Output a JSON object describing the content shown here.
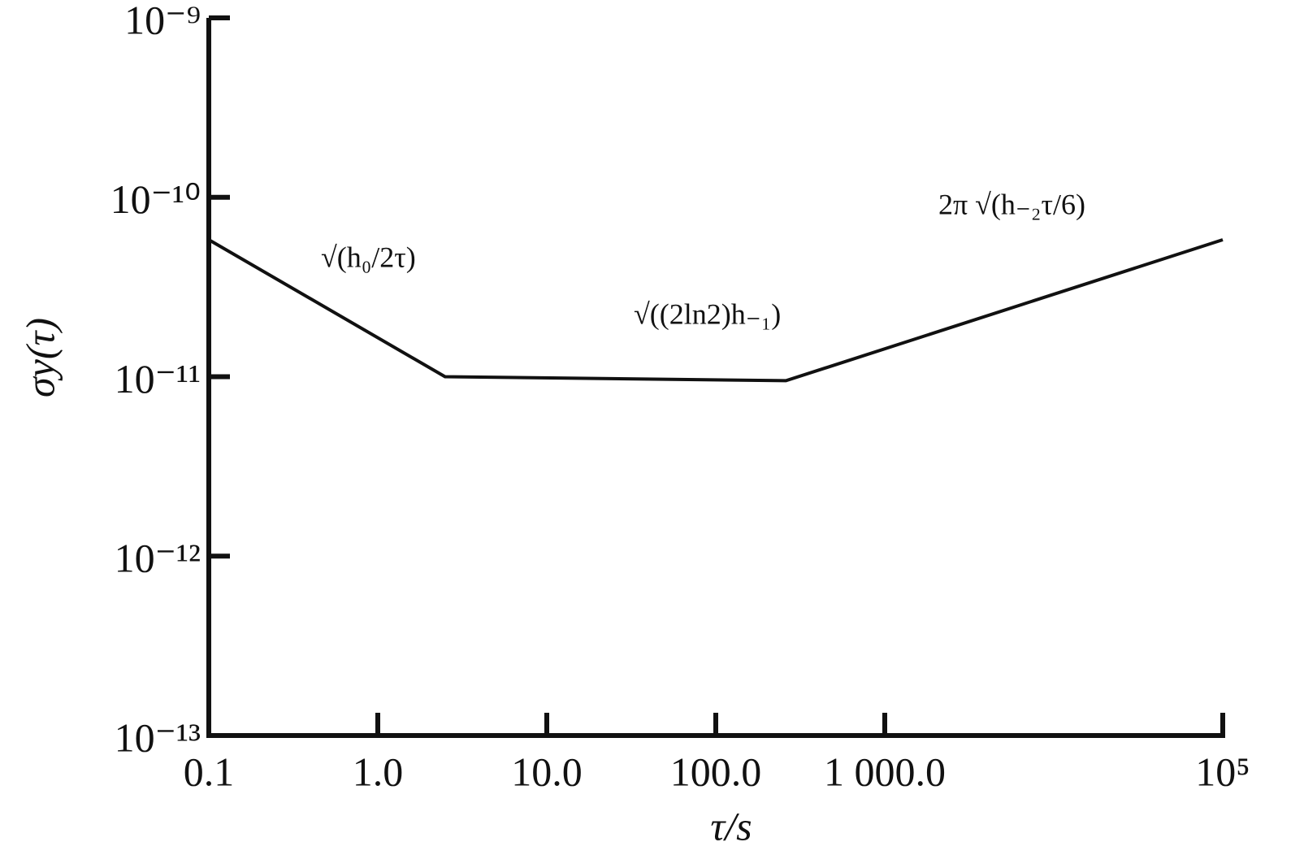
{
  "chart_data": {
    "type": "line",
    "x_label": "τ/s",
    "y_label": "σy(τ)",
    "x_log": true,
    "y_log": true,
    "xlim": [
      0.1,
      100000
    ],
    "xticks": [
      {
        "value": 0.1,
        "label": "0.1"
      },
      {
        "value": 1,
        "label": "1.0"
      },
      {
        "value": 10,
        "label": "10.0"
      },
      {
        "value": 100,
        "label": "100.0"
      },
      {
        "value": 1000,
        "label": "1 000.0"
      },
      {
        "value": 100000,
        "label": "10⁵"
      }
    ],
    "ylim": [
      1e-13,
      1e-09
    ],
    "yticks": [
      {
        "value": 1e-13,
        "label": "10⁻¹³"
      },
      {
        "value": 1e-12,
        "label": "10⁻¹²"
      },
      {
        "value": 1e-11,
        "label": "10⁻¹¹"
      },
      {
        "value": 1e-10,
        "label": "10⁻¹⁰"
      },
      {
        "value": 1e-09,
        "label": "10⁻⁹"
      }
    ],
    "color": "#111111",
    "x": [
      0.1,
      2.5,
      260,
      100000
    ],
    "values": [
      5.8e-11,
      1e-11,
      9.5e-12,
      5.8e-11
    ],
    "annotations": [
      "√(h₀/2τ)",
      "√((2ln2)h₋₁)",
      "2π √(h₋₂τ/6)"
    ]
  }
}
